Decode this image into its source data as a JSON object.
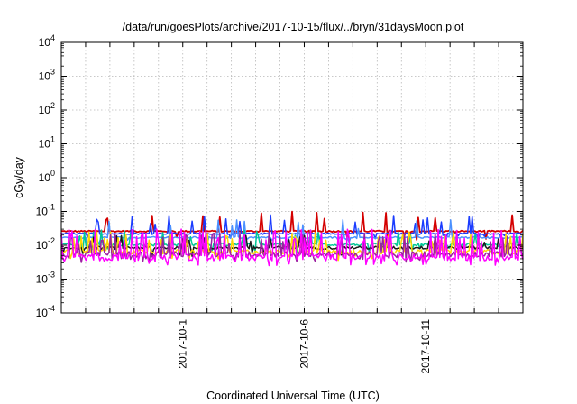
{
  "chart_data": {
    "type": "line",
    "title": "/data/run/goesPlots/archive/2017-10-15/flux/../bryn/31daysMoon.plot",
    "xlabel": "Coordinated Universal Time (UTC)",
    "ylabel": "cGy/day",
    "yscale": "log",
    "ylim": [
      0.0001,
      10000
    ],
    "xlim": [
      "2017-09-26",
      "2017-10-15"
    ],
    "y_ticks": [
      {
        "mant": "10",
        "exp": "-4"
      },
      {
        "mant": "10",
        "exp": "-3"
      },
      {
        "mant": "10",
        "exp": "-2"
      },
      {
        "mant": "10",
        "exp": "-1"
      },
      {
        "mant": "10",
        "exp": "0"
      },
      {
        "mant": "10",
        "exp": "1"
      },
      {
        "mant": "10",
        "exp": "2"
      },
      {
        "mant": "10",
        "exp": "3"
      },
      {
        "mant": "10",
        "exp": "4"
      }
    ],
    "x_tick_labels": [
      {
        "date": "2017-10-01",
        "label": "2017-10-1"
      },
      {
        "date": "2017-10-06",
        "label": "2017-10-6"
      },
      {
        "date": "2017-10-11",
        "label": "2017-10-11"
      }
    ],
    "grid": true,
    "series_colors": [
      "#d40000",
      "#1a3cff",
      "#4a90ff",
      "#00c896",
      "#1a1a1a",
      "#ffd800",
      "#9c20a0",
      "#ff00ff"
    ],
    "series": [
      {
        "color": "#d40000",
        "base": 0.026,
        "wobble": 0.05,
        "spike_rate": 0.08,
        "spike_max": 0.1
      },
      {
        "color": "#1a3cff",
        "base": 0.022,
        "wobble": 0.05,
        "spike_rate": 0.08,
        "spike_max": 0.08
      },
      {
        "color": "#4a90ff",
        "base": 0.017,
        "wobble": 0.06,
        "spike_rate": 0.07,
        "spike_max": 0.06
      },
      {
        "color": "#00c896",
        "base": 0.0105,
        "wobble": 0.1,
        "spike_rate": 0.12,
        "spike_max": 0.03
      },
      {
        "color": "#1a1a1a",
        "base": 0.0085,
        "wobble": 0.1,
        "spike_rate": 0.12,
        "spike_max": 0.02
      },
      {
        "color": "#ffd800",
        "base": 0.0065,
        "wobble": 0.15,
        "spike_rate": 0.22,
        "spike_max": 0.025
      },
      {
        "color": "#9c20a0",
        "base": 0.0055,
        "wobble": 0.18,
        "spike_rate": 0.25,
        "spike_max": 0.025
      },
      {
        "color": "#ff00ff",
        "base": 0.0045,
        "wobble": 0.22,
        "spike_rate": 0.3,
        "spike_max": 0.03
      }
    ]
  }
}
